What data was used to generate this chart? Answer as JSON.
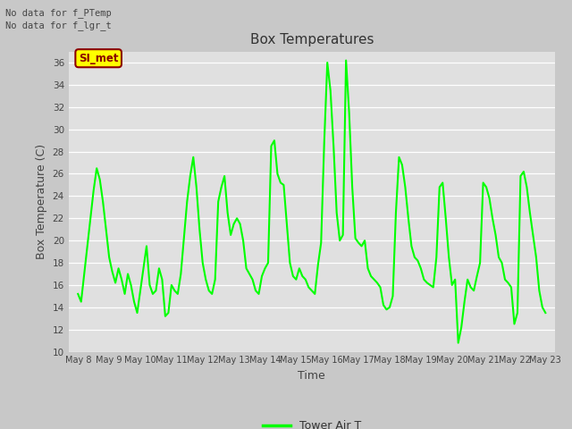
{
  "title": "Box Temperatures",
  "xlabel": "Time",
  "ylabel": "Box Temperature (C)",
  "ylim": [
    10,
    37
  ],
  "yticks": [
    10,
    12,
    14,
    16,
    18,
    20,
    22,
    24,
    26,
    28,
    30,
    32,
    34,
    36
  ],
  "line_color": "#00FF00",
  "line_width": 1.5,
  "fig_bg_color": "#C8C8C8",
  "plot_bg_color": "#E0E0E0",
  "no_data_text1": "No data for f_PTemp",
  "no_data_text2": "No data for f_lgr_t",
  "legend_label": "Tower Air T",
  "legend_box_facecolor": "#FFFF00",
  "legend_box_edgecolor": "#8B0000",
  "legend_text": "SI_met",
  "x_tick_labels": [
    "May 8",
    "May 9",
    "May 10",
    "May 11",
    "May 12",
    "May 13",
    "May 14",
    "May 15",
    "May 16",
    "May 17",
    "May 18",
    "May 19",
    "May 20",
    "May 21",
    "May 22",
    "May 23"
  ],
  "temperatures": [
    15.2,
    14.5,
    17.0,
    19.5,
    22.0,
    24.5,
    26.5,
    25.5,
    23.5,
    21.0,
    18.5,
    17.2,
    16.2,
    17.5,
    16.5,
    15.2,
    17.0,
    16.0,
    14.5,
    13.5,
    15.5,
    17.5,
    19.5,
    16.0,
    15.2,
    15.5,
    17.5,
    16.5,
    13.2,
    13.5,
    16.0,
    15.5,
    15.2,
    17.0,
    20.2,
    23.5,
    25.8,
    27.5,
    24.8,
    21.0,
    18.0,
    16.5,
    15.5,
    15.2,
    16.5,
    23.5,
    24.8,
    25.8,
    22.5,
    20.5,
    21.5,
    22.0,
    21.5,
    20.0,
    17.5,
    17.0,
    16.5,
    15.5,
    15.2,
    16.8,
    17.5,
    18.0,
    28.5,
    29.0,
    26.0,
    25.2,
    25.0,
    21.5,
    18.0,
    16.8,
    16.5,
    17.5,
    16.8,
    16.5,
    15.8,
    15.5,
    15.2,
    17.8,
    19.8,
    28.8,
    36.0,
    33.5,
    28.5,
    22.5,
    20.0,
    20.5,
    36.2,
    31.5,
    24.8,
    20.2,
    19.8,
    19.5,
    20.0,
    17.5,
    16.8,
    16.5,
    16.2,
    15.8,
    14.2,
    13.8,
    14.0,
    15.0,
    22.5,
    27.5,
    26.8,
    24.8,
    22.0,
    19.5,
    18.5,
    18.2,
    17.5,
    16.5,
    16.2,
    16.0,
    15.8,
    18.5,
    24.8,
    25.2,
    22.0,
    18.5,
    16.0,
    16.5,
    10.8,
    12.2,
    14.5,
    16.5,
    15.8,
    15.5,
    16.8,
    18.0,
    25.2,
    24.8,
    23.8,
    22.0,
    20.5,
    18.5,
    18.0,
    16.5,
    16.2,
    15.8,
    12.5,
    13.5,
    25.8,
    26.2,
    24.8,
    22.5,
    20.5,
    18.5,
    15.5,
    14.0,
    13.5
  ]
}
